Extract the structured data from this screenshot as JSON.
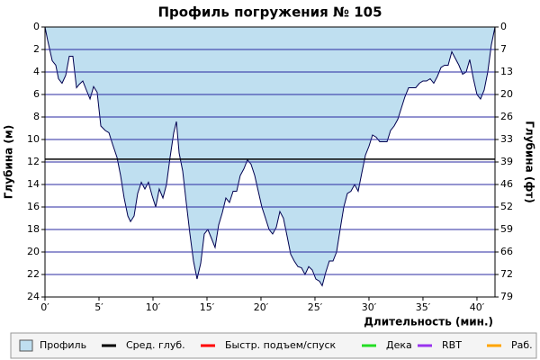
{
  "chart_data": {
    "type": "area",
    "title": "Профиль погружения № 105",
    "x_label": "Длительность (мин.)",
    "y_label": "Глубина (м)",
    "y2_label": "Глубина (фт)",
    "xlim": [
      0,
      41.67
    ],
    "ylim": [
      24,
      0
    ],
    "y2lim": [
      78.74,
      0
    ],
    "xticks": [
      {
        "value": 0,
        "label": "0′"
      },
      {
        "value": 5,
        "label": "5′"
      },
      {
        "value": 10,
        "label": "10′"
      },
      {
        "value": 15,
        "label": "15′"
      },
      {
        "value": 20,
        "label": "20′"
      },
      {
        "value": 25,
        "label": "25′"
      },
      {
        "value": 30,
        "label": "30′"
      },
      {
        "value": 35,
        "label": "35′"
      },
      {
        "value": 40,
        "label": "40′"
      }
    ],
    "yticks": [
      0,
      2,
      4,
      6,
      8,
      10,
      12,
      14,
      16,
      18,
      20,
      22,
      24
    ],
    "y2ticks": [
      0,
      {
        "value": 6.56,
        "label": "7"
      },
      {
        "value": 13.12,
        "label": "13"
      },
      {
        "value": 19.69,
        "label": "20"
      },
      {
        "value": 26.25,
        "label": "26"
      },
      {
        "value": 32.81,
        "label": "33"
      },
      {
        "value": 39.37,
        "label": "39"
      },
      {
        "value": 45.93,
        "label": "46"
      },
      {
        "value": 52.49,
        "label": "52"
      },
      {
        "value": 59.06,
        "label": "59"
      },
      {
        "value": 65.62,
        "label": "66"
      },
      {
        "value": 72.18,
        "label": "72"
      },
      {
        "value": 78.74,
        "label": "79"
      }
    ],
    "grid": true,
    "grid_color": "#2a2aa0",
    "series": [
      {
        "name": "Профиль",
        "color": "#bfdff0",
        "line_color": "#000050",
        "x": [
          0,
          0.25,
          0.67,
          1,
          1.25,
          1.58,
          1.92,
          2.25,
          2.58,
          2.92,
          3.17,
          3.5,
          3.83,
          4.17,
          4.5,
          4.83,
          5.17,
          5.58,
          5.92,
          6.25,
          6.67,
          7.0,
          7.33,
          7.67,
          7.92,
          8.25,
          8.58,
          8.92,
          9.25,
          9.58,
          9.92,
          10.25,
          10.58,
          10.92,
          11.25,
          11.58,
          11.92,
          12.17,
          12.42,
          12.75,
          13.08,
          13.42,
          13.75,
          14.08,
          14.42,
          14.75,
          15.08,
          15.42,
          15.75,
          16.08,
          16.42,
          16.75,
          17.08,
          17.42,
          17.75,
          18.08,
          18.42,
          18.75,
          19.08,
          19.42,
          19.75,
          20.08,
          20.42,
          20.75,
          21.08,
          21.42,
          21.75,
          22.08,
          22.42,
          22.75,
          23.08,
          23.42,
          23.75,
          24.08,
          24.42,
          24.75,
          25.08,
          25.42,
          25.67,
          26.0,
          26.33,
          26.67,
          27.0,
          27.33,
          27.67,
          28.0,
          28.33,
          28.67,
          29.0,
          29.33,
          29.67,
          30.0,
          30.33,
          30.67,
          31.0,
          31.33,
          31.67,
          32.0,
          32.33,
          32.67,
          33.0,
          33.33,
          33.67,
          34.0,
          34.33,
          34.67,
          35.0,
          35.33,
          35.67,
          36.0,
          36.33,
          36.67,
          37.0,
          37.33,
          37.67,
          38.0,
          38.33,
          38.67,
          39.0,
          39.33,
          39.67,
          40.0,
          40.33,
          40.67,
          41.0,
          41.33,
          41.67
        ],
        "values": [
          0,
          1.2,
          3.0,
          3.4,
          4.6,
          5.0,
          4.3,
          2.6,
          2.6,
          5.4,
          5.1,
          4.8,
          5.6,
          6.4,
          5.3,
          5.8,
          8.8,
          9.2,
          9.4,
          10.4,
          11.6,
          13.2,
          15.2,
          16.8,
          17.3,
          16.8,
          14.8,
          13.8,
          14.4,
          13.8,
          15.0,
          16.0,
          14.4,
          15.2,
          14.0,
          11.6,
          9.4,
          8.4,
          11.2,
          12.8,
          15.6,
          18.4,
          20.8,
          22.4,
          21.0,
          18.4,
          18.0,
          18.8,
          19.6,
          17.6,
          16.5,
          15.2,
          15.6,
          14.6,
          14.6,
          13.2,
          12.6,
          11.8,
          12.2,
          13.2,
          14.6,
          16.0,
          17.0,
          18.0,
          18.4,
          17.8,
          16.4,
          17.0,
          18.6,
          20.2,
          20.8,
          21.3,
          21.4,
          22.0,
          21.3,
          21.6,
          22.4,
          22.6,
          23.0,
          21.8,
          20.8,
          20.8,
          20.0,
          18.0,
          16.0,
          14.8,
          14.6,
          14.0,
          14.6,
          13.0,
          11.4,
          10.6,
          9.6,
          9.8,
          10.2,
          10.2,
          10.2,
          9.2,
          8.8,
          8.2,
          7.2,
          6.2,
          5.4,
          5.4,
          5.4,
          5.0,
          4.8,
          4.8,
          4.6,
          5.0,
          4.4,
          3.6,
          3.4,
          3.4,
          2.2,
          2.8,
          3.4,
          4.2,
          4.0,
          2.9,
          4.6,
          6.0,
          6.4,
          5.6,
          4.0,
          1.6,
          0
        ]
      },
      {
        "name": "Сред. глуб.",
        "color": "#000000",
        "value": 11.75
      },
      {
        "name": "Быстр. подъем/спуск",
        "color": "#ff0000"
      },
      {
        "name": "Дека",
        "color": "#22dd22"
      },
      {
        "name": "RBT",
        "color": "#9933ee"
      },
      {
        "name": "Раб.",
        "color": "#ffa500"
      }
    ]
  }
}
